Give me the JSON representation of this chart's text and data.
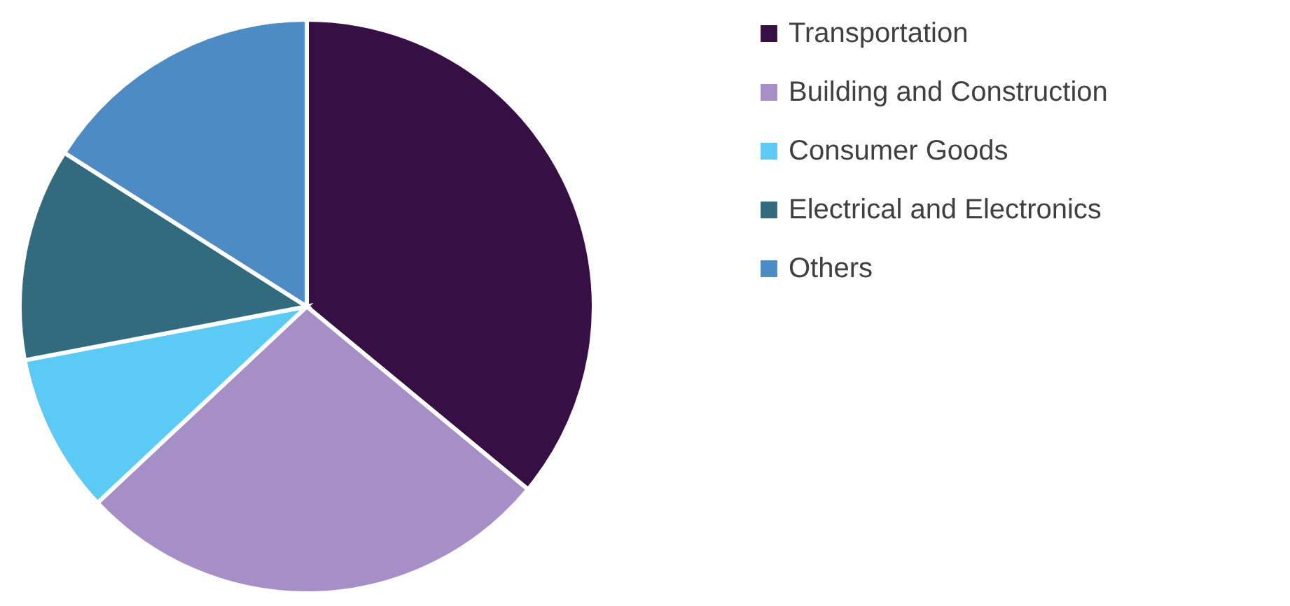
{
  "chart_data": {
    "type": "pie",
    "categories": [
      "Transportation",
      "Building and Construction",
      "Consumer Goods",
      "Electrical and Electronics",
      "Others"
    ],
    "values": [
      36,
      27,
      9,
      12,
      16
    ],
    "colors": [
      "#360f44",
      "#a58fc6",
      "#5bcbf5",
      "#336b7e",
      "#4d8bc4"
    ],
    "legend": "right"
  }
}
